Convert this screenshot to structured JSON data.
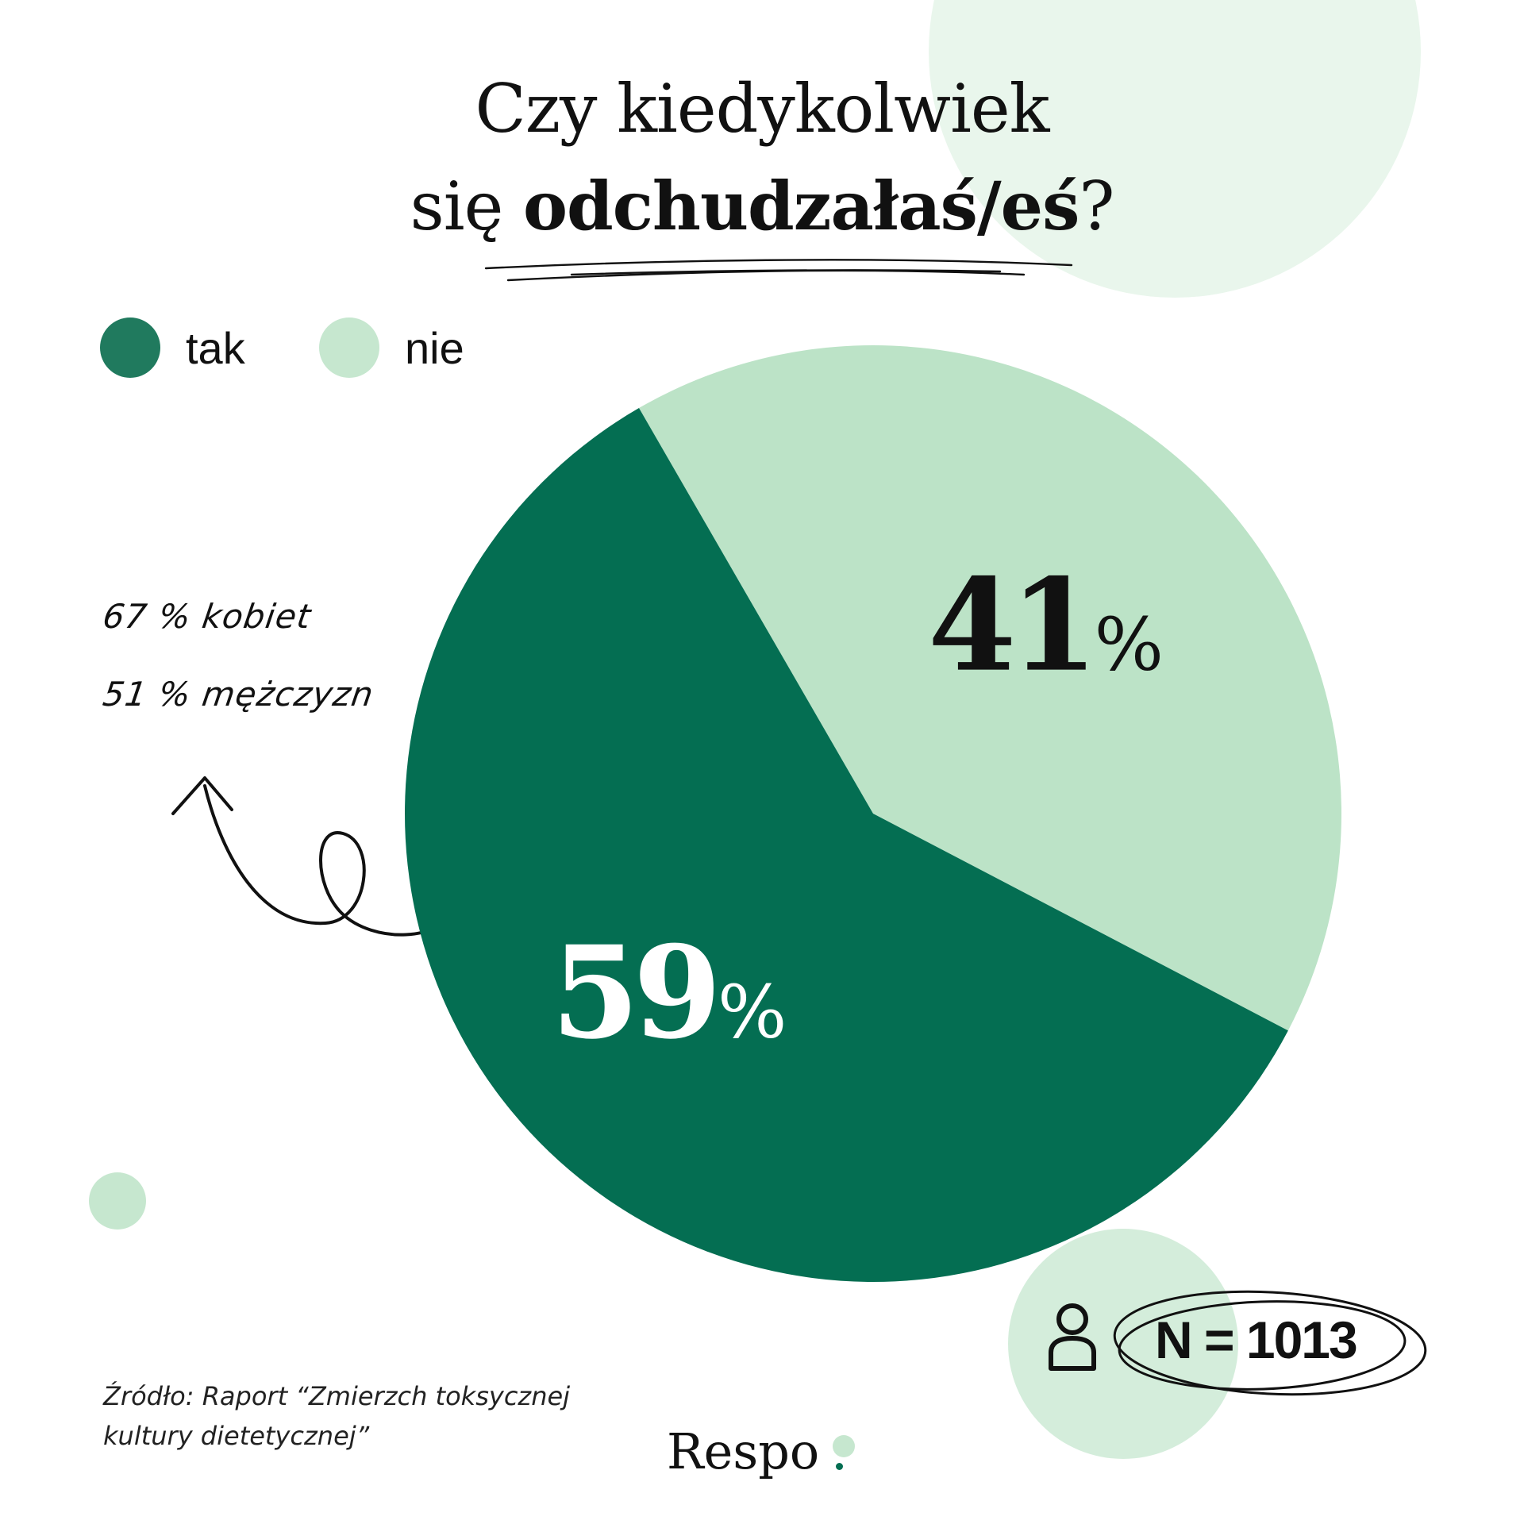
{
  "title": {
    "line1": "Czy kiedykolwiek",
    "line2_prefix": "się ",
    "line2_bold": "odchudzałaś/eś",
    "line2_suffix": "?"
  },
  "legend": [
    {
      "label": "tak",
      "color": "#046e52"
    },
    {
      "label": "nie",
      "color": "#c6e7cf"
    }
  ],
  "chart_data": {
    "type": "pie",
    "title": "Czy kiedykolwiek się odchudzałaś/eś?",
    "categories": [
      "tak",
      "nie"
    ],
    "values": [
      59,
      41
    ],
    "labels": [
      "59",
      "41"
    ],
    "unit": "%",
    "colors": [
      "#046e52",
      "#bce3c7"
    ],
    "legend_position": "top-left"
  },
  "annotations": {
    "women": "67 % kobiet",
    "men": "51 % mężczyzn"
  },
  "sample": {
    "text": "N = 1013",
    "icon": "person-icon"
  },
  "source": {
    "line1": "Źródło: Raport “Zmierzch toksycznej",
    "line2": "kultury dietetycznej”"
  },
  "brand": {
    "name": "Respo"
  }
}
